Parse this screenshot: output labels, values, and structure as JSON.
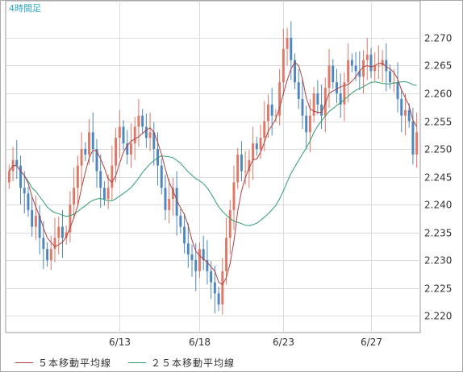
{
  "chart_data": {
    "type": "candlestick",
    "period_label": "4時間足",
    "y_ticks": [
      "2.270",
      "2.265",
      "2.260",
      "2.255",
      "2.250",
      "2.245",
      "2.240",
      "2.235",
      "2.230",
      "2.225",
      "2.220"
    ],
    "y_tick_values": [
      2.27,
      2.265,
      2.26,
      2.255,
      2.25,
      2.245,
      2.24,
      2.235,
      2.23,
      2.225,
      2.22
    ],
    "ylim": [
      2.218,
      2.275
    ],
    "x_labels": [
      {
        "label": "6/13",
        "index": 29
      },
      {
        "label": "6/18",
        "index": 50
      },
      {
        "label": "6/23",
        "index": 72
      },
      {
        "label": "6/27",
        "index": 95
      }
    ],
    "grid": true,
    "colors": {
      "up": "#e07868",
      "down": "#4f86bd",
      "ma5": "#b04040",
      "ma25": "#2e9e6e"
    },
    "legend": [
      {
        "label": "５本移動平均線",
        "color": "#b04040"
      },
      {
        "label": "２５本移動平均線",
        "color": "#2e9e6e"
      }
    ],
    "closes": [
      2.246,
      2.248,
      2.247,
      2.243,
      2.242,
      2.239,
      2.236,
      2.238,
      2.234,
      2.232,
      2.23,
      2.232,
      2.234,
      2.236,
      2.234,
      2.235,
      2.24,
      2.243,
      2.247,
      2.25,
      2.249,
      2.253,
      2.25,
      2.246,
      2.243,
      2.241,
      2.243,
      2.247,
      2.252,
      2.254,
      2.251,
      2.249,
      2.251,
      2.254,
      2.256,
      2.254,
      2.252,
      2.253,
      2.25,
      2.247,
      2.243,
      2.239,
      2.241,
      2.243,
      2.238,
      2.236,
      2.233,
      2.231,
      2.23,
      2.228,
      2.232,
      2.23,
      2.228,
      2.226,
      2.224,
      2.222,
      2.228,
      2.234,
      2.239,
      2.244,
      2.249,
      2.246,
      2.246,
      2.248,
      2.251,
      2.25,
      2.252,
      2.255,
      2.258,
      2.256,
      2.256,
      2.262,
      2.268,
      2.27,
      2.266,
      2.262,
      2.259,
      2.256,
      2.253,
      2.256,
      2.26,
      2.258,
      2.256,
      2.261,
      2.265,
      2.262,
      2.26,
      2.258,
      2.262,
      2.266,
      2.265,
      2.264,
      2.263,
      2.266,
      2.267,
      2.264,
      2.265,
      2.265,
      2.266,
      2.264,
      2.262,
      2.262,
      2.259,
      2.256,
      2.257,
      2.255,
      2.249,
      2.253
    ]
  }
}
